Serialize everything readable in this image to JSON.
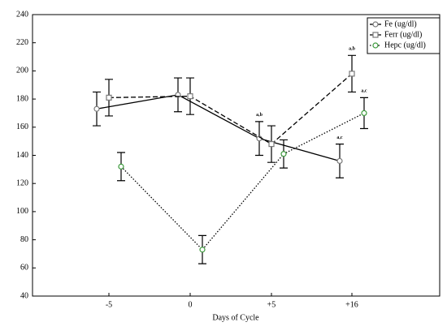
{
  "chart_data": {
    "type": "line",
    "x_label": "Days of Cycle",
    "categories": [
      "-5",
      "0",
      "+5",
      "+16"
    ],
    "ylim": [
      40,
      240
    ],
    "yticks": [
      40,
      60,
      80,
      100,
      120,
      140,
      160,
      180,
      200,
      220,
      240
    ],
    "legend": "top-right",
    "series": [
      {
        "name": "Fe (ug/dl)",
        "color": "#000000",
        "marker_color": "#7a7a7a",
        "marker": "circle",
        "line_style": "solid",
        "values": [
          173,
          183,
          152,
          136
        ],
        "errors": [
          12,
          12,
          12,
          12
        ],
        "labels": [
          null,
          null,
          "a,b",
          "a,c"
        ]
      },
      {
        "name": "Ferr (ug/dl)",
        "color": "#000000",
        "marker_color": "#7a7a7a",
        "marker": "square",
        "line_style": "dashed",
        "values": [
          181,
          182,
          148,
          198
        ],
        "errors": [
          13,
          13,
          13,
          13
        ],
        "labels": [
          null,
          null,
          null,
          "a,b"
        ]
      },
      {
        "name": "Hepc (ug/dl)",
        "color": "#000000",
        "marker_color": "#3c9a3c",
        "marker": "circle",
        "line_style": "dotted",
        "values": [
          132,
          73,
          141,
          170
        ],
        "errors": [
          10,
          10,
          10,
          11
        ],
        "labels": [
          null,
          null,
          null,
          "a,c"
        ]
      }
    ]
  }
}
